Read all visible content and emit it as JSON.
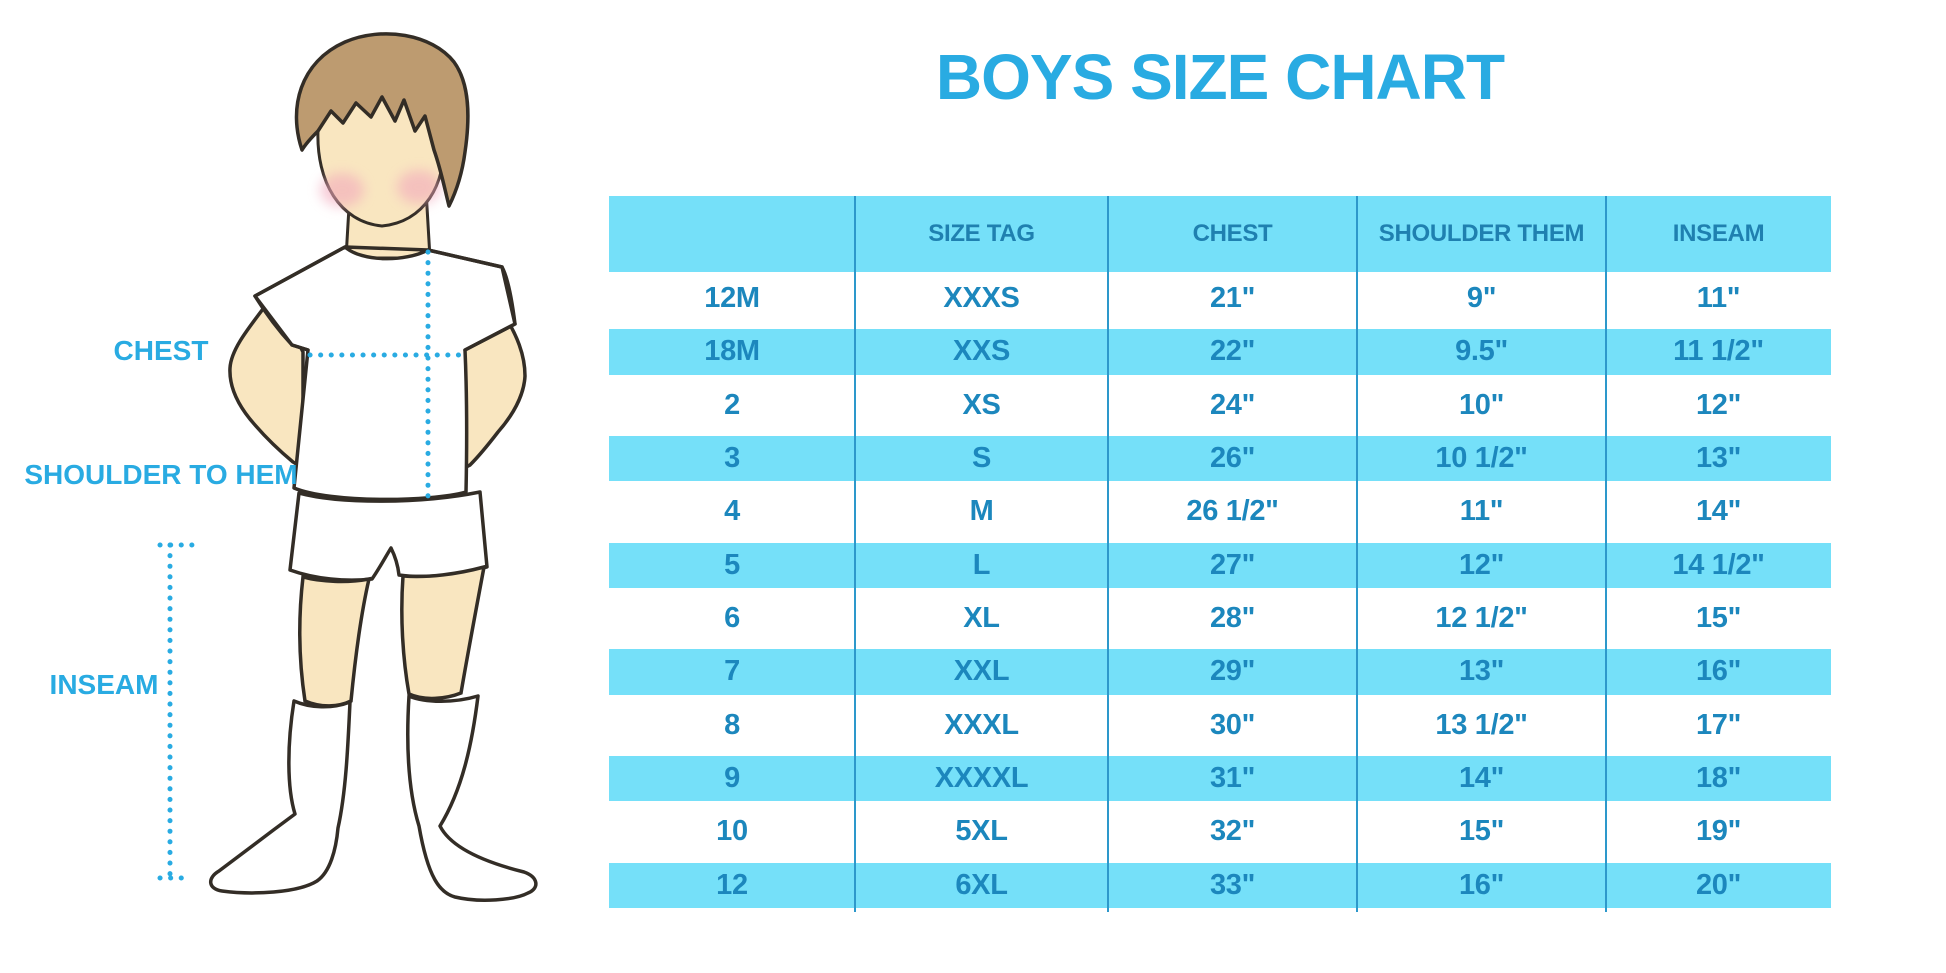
{
  "title": "BOYS SIZE CHART",
  "figure": {
    "description": "cartoon boy in white t-shirt, shorts and knee socks with dotted measurement guides",
    "labels": {
      "chest": "CHEST",
      "shoulder_to_hem": "SHOULDER TO HEM",
      "inseam": "INSEAM"
    }
  },
  "table": {
    "headers": [
      "",
      "SIZE TAG",
      "CHEST",
      "SHOULDER THEM",
      "INSEAM"
    ],
    "rows": [
      [
        "12M",
        "XXXS",
        "21\"",
        "9\"",
        "11\""
      ],
      [
        "18M",
        "XXS",
        "22\"",
        "9.5\"",
        "11 1/2\""
      ],
      [
        "2",
        "XS",
        "24\"",
        "10\"",
        "12\""
      ],
      [
        "3",
        "S",
        "26\"",
        "10 1/2\"",
        "13\""
      ],
      [
        "4",
        "M",
        "26 1/2\"",
        "11\"",
        "14\""
      ],
      [
        "5",
        "L",
        "27\"",
        "12\"",
        "14 1/2\""
      ],
      [
        "6",
        "XL",
        "28\"",
        "12 1/2\"",
        "15\""
      ],
      [
        "7",
        "XXL",
        "29\"",
        "13\"",
        "16\""
      ],
      [
        "8",
        "XXXL",
        "30\"",
        "13 1/2\"",
        "17\""
      ],
      [
        "9",
        "XXXXL",
        "31\"",
        "14\"",
        "18\""
      ],
      [
        "10",
        "5XL",
        "32\"",
        "15\"",
        "19\""
      ],
      [
        "12",
        "6XL",
        "33\"",
        "16\"",
        "20\""
      ]
    ]
  },
  "chart_data": {
    "type": "table",
    "title": "BOYS SIZE CHART",
    "columns": [
      "size",
      "size_tag",
      "chest",
      "shoulder_them",
      "inseam"
    ],
    "rows": [
      [
        "12M",
        "XXXS",
        "21\"",
        "9\"",
        "11\""
      ],
      [
        "18M",
        "XXS",
        "22\"",
        "9.5\"",
        "11 1/2\""
      ],
      [
        "2",
        "XS",
        "24\"",
        "10\"",
        "12\""
      ],
      [
        "3",
        "S",
        "26\"",
        "10 1/2\"",
        "13\""
      ],
      [
        "4",
        "M",
        "26 1/2\"",
        "11\"",
        "14\""
      ],
      [
        "5",
        "L",
        "27\"",
        "12\"",
        "14 1/2\""
      ],
      [
        "6",
        "XL",
        "28\"",
        "12 1/2\"",
        "15\""
      ],
      [
        "7",
        "XXL",
        "29\"",
        "13\"",
        "16\""
      ],
      [
        "8",
        "XXXL",
        "30\"",
        "13 1/2\"",
        "17\""
      ],
      [
        "9",
        "XXXXL",
        "31\"",
        "14\"",
        "18\""
      ],
      [
        "10",
        "5XL",
        "32\"",
        "15\"",
        "19\""
      ],
      [
        "12",
        "6XL",
        "33\"",
        "16\"",
        "20\""
      ]
    ]
  },
  "colors": {
    "accent_blue": "#29ABE2",
    "row_cyan": "#75E0F9",
    "table_text": "#1C87BD",
    "header_text": "#1F80B0",
    "divider": "#2D98CB",
    "hair": "#BD9B70",
    "skin": "#F9E6C0",
    "outline": "#332D26",
    "cheek_pink": "#F2A9BC"
  }
}
